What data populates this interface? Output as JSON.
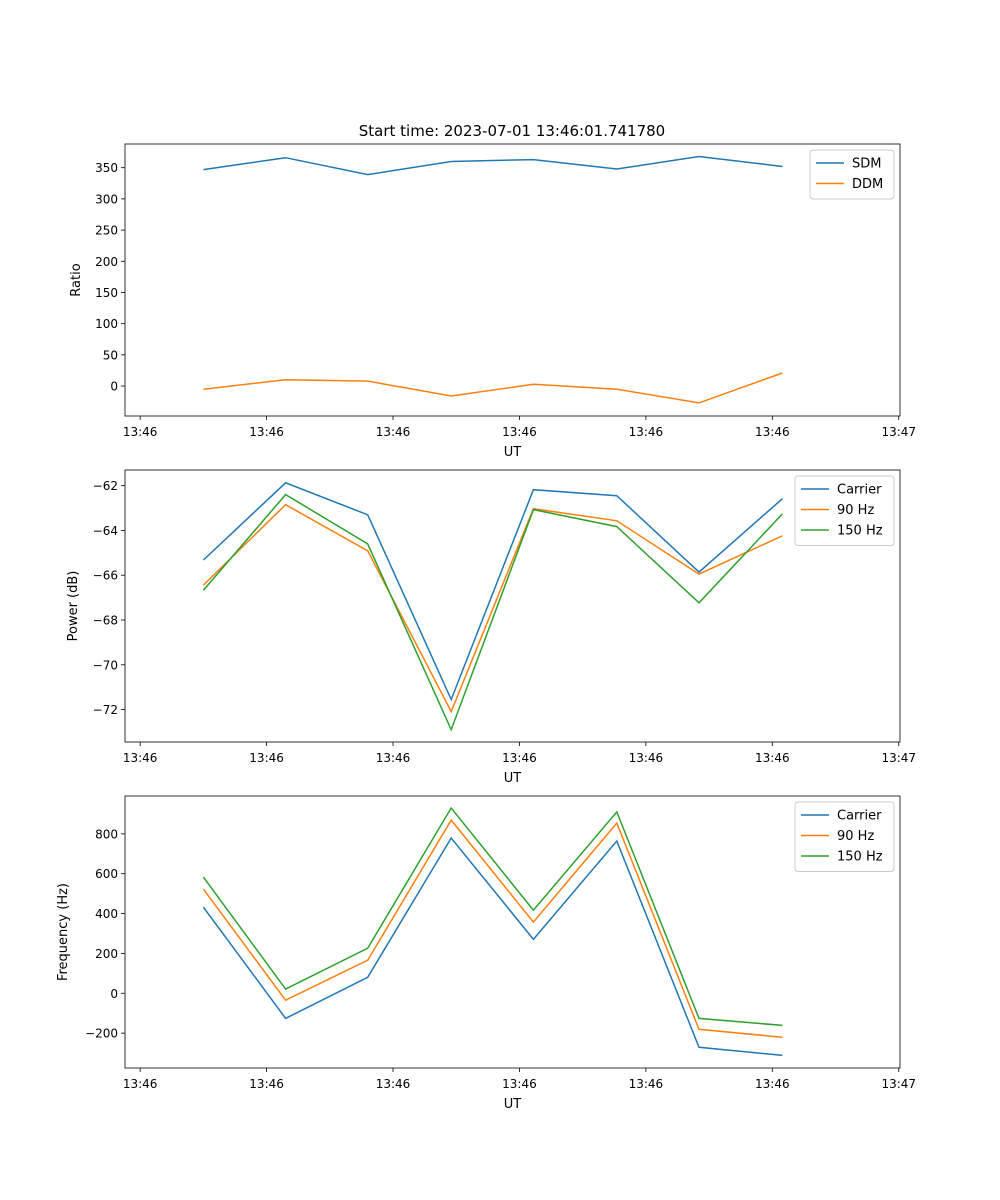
{
  "title": "Start time: 2023-07-01 13:46:01.741780",
  "colors": {
    "blue": "#1f77b4",
    "orange": "#ff7f0e",
    "green": "#2ca02c"
  },
  "chart_data": [
    {
      "type": "line",
      "title": "Start time: 2023-07-01 13:46:01.741780",
      "xlabel": "UT",
      "ylabel": "Ratio",
      "x_seconds_after_13_46": [
        5.0,
        11.5,
        18.0,
        24.6,
        31.1,
        37.7,
        44.2,
        50.8
      ],
      "xlim": [
        -1.2,
        60.1
      ],
      "xticks": [
        0,
        10,
        20,
        30,
        40,
        50,
        60
      ],
      "xtick_labels": [
        "13:46",
        "13:46",
        "13:46",
        "13:46",
        "13:46",
        "13:46",
        "13:47"
      ],
      "ylim": [
        -48,
        388
      ],
      "yticks": [
        0,
        50,
        100,
        150,
        200,
        250,
        300,
        350
      ],
      "ytick_labels": [
        "0",
        "50",
        "100",
        "150",
        "200",
        "250",
        "300",
        "350"
      ],
      "legend_position": "top-right",
      "series": [
        {
          "name": "SDM",
          "color": "#1f77b4",
          "values": [
            347,
            366,
            339,
            360,
            363,
            348,
            368,
            352
          ]
        },
        {
          "name": "DDM",
          "color": "#ff7f0e",
          "values": [
            -5,
            10,
            8,
            -16,
            3,
            -5,
            -27,
            21
          ]
        }
      ]
    },
    {
      "type": "line",
      "xlabel": "UT",
      "ylabel": "Power (dB)",
      "x_seconds_after_13_46": [
        5.0,
        11.5,
        18.0,
        24.6,
        31.1,
        37.7,
        44.2,
        50.8
      ],
      "xlim": [
        -1.2,
        60.1
      ],
      "xticks": [
        0,
        10,
        20,
        30,
        40,
        50,
        60
      ],
      "xtick_labels": [
        "13:46",
        "13:46",
        "13:46",
        "13:46",
        "13:46",
        "13:46",
        "13:47"
      ],
      "ylim": [
        -73.45,
        -61.3
      ],
      "yticks": [
        -72,
        -70,
        -68,
        -66,
        -64,
        -62
      ],
      "ytick_labels": [
        "−72",
        "−70",
        "−68",
        "−66",
        "−64",
        "−62"
      ],
      "legend_position": "top-right",
      "series": [
        {
          "name": "Carrier",
          "color": "#1f77b4",
          "values": [
            -65.32,
            -61.87,
            -63.3,
            -71.55,
            -62.18,
            -62.45,
            -65.86,
            -62.58
          ]
        },
        {
          "name": "90 Hz",
          "color": "#ff7f0e",
          "values": [
            -66.44,
            -62.85,
            -64.91,
            -72.09,
            -63.03,
            -63.57,
            -65.95,
            -64.24
          ]
        },
        {
          "name": "150 Hz",
          "color": "#2ca02c",
          "values": [
            -66.67,
            -62.4,
            -64.6,
            -72.9,
            -63.07,
            -63.83,
            -67.23,
            -63.26
          ]
        }
      ]
    },
    {
      "type": "line",
      "xlabel": "UT",
      "ylabel": "Frequency (Hz)",
      "x_seconds_after_13_46": [
        5.0,
        11.5,
        18.0,
        24.6,
        31.1,
        37.7,
        44.2,
        50.8
      ],
      "xlim": [
        -1.2,
        60.1
      ],
      "xticks": [
        0,
        10,
        20,
        30,
        40,
        50,
        60
      ],
      "xtick_labels": [
        "13:46",
        "13:46",
        "13:46",
        "13:46",
        "13:46",
        "13:46",
        "13:47"
      ],
      "ylim": [
        -375,
        990
      ],
      "yticks": [
        -200,
        0,
        200,
        400,
        600,
        800
      ],
      "ytick_labels": [
        "−200",
        "0",
        "200",
        "400",
        "600",
        "800"
      ],
      "legend_position": "top-right",
      "series": [
        {
          "name": "Carrier",
          "color": "#1f77b4",
          "values": [
            432,
            -126,
            80,
            779,
            271,
            764,
            -271,
            -312
          ]
        },
        {
          "name": "90 Hz",
          "color": "#ff7f0e",
          "values": [
            523,
            -35,
            166,
            869,
            357,
            854,
            -181,
            -221
          ]
        },
        {
          "name": "150 Hz",
          "color": "#2ca02c",
          "values": [
            583,
            21,
            226,
            930,
            417,
            910,
            -126,
            -161
          ]
        }
      ]
    }
  ]
}
